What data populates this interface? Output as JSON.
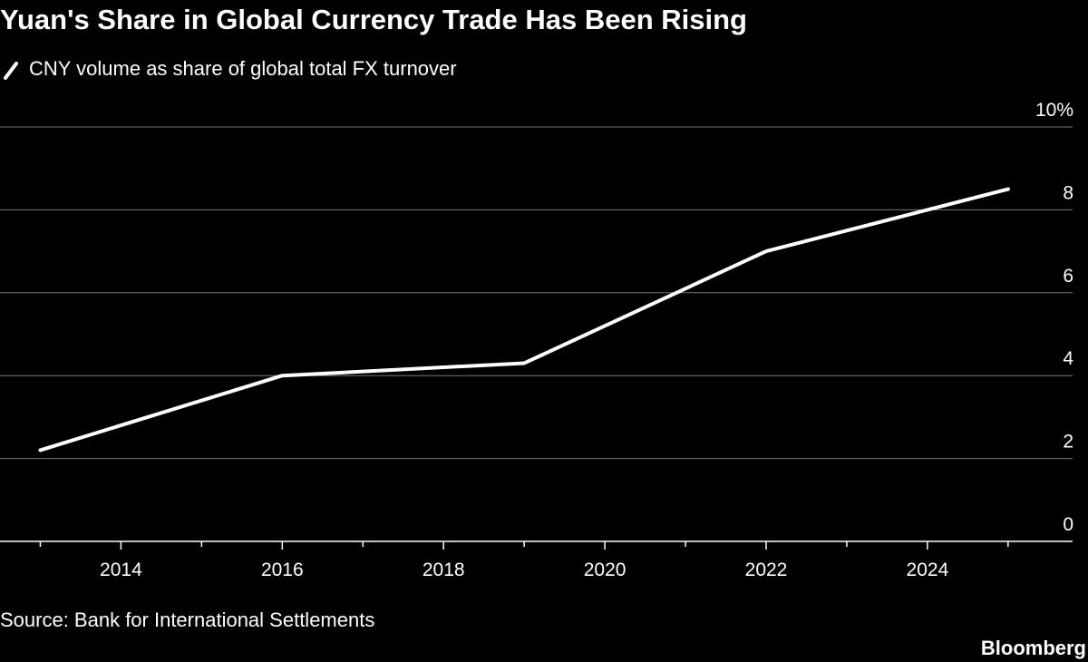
{
  "chart_data": {
    "type": "line",
    "title": "Yuan's Share in Global Currency Trade Has Been Rising",
    "source": "Source: Bank for International Settlements",
    "brand": "Bloomberg",
    "x": [
      2013,
      2016,
      2019,
      2022,
      2025
    ],
    "series": [
      {
        "name": "CNY volume as share of global total FX turnover",
        "color": "#ffffff",
        "values": [
          2.2,
          4.0,
          4.3,
          7.0,
          8.5
        ]
      }
    ],
    "xlim": [
      2012.5,
      2025.8
    ],
    "xticks": [
      2014,
      2016,
      2018,
      2020,
      2022,
      2024
    ],
    "xminorticks": [
      2013,
      2015,
      2017,
      2019,
      2021,
      2023,
      2025
    ],
    "ylim": [
      0,
      10
    ],
    "yticks": [
      0,
      2,
      4,
      6,
      8,
      {
        "value": 10,
        "label": "10%"
      }
    ],
    "grid": true
  }
}
